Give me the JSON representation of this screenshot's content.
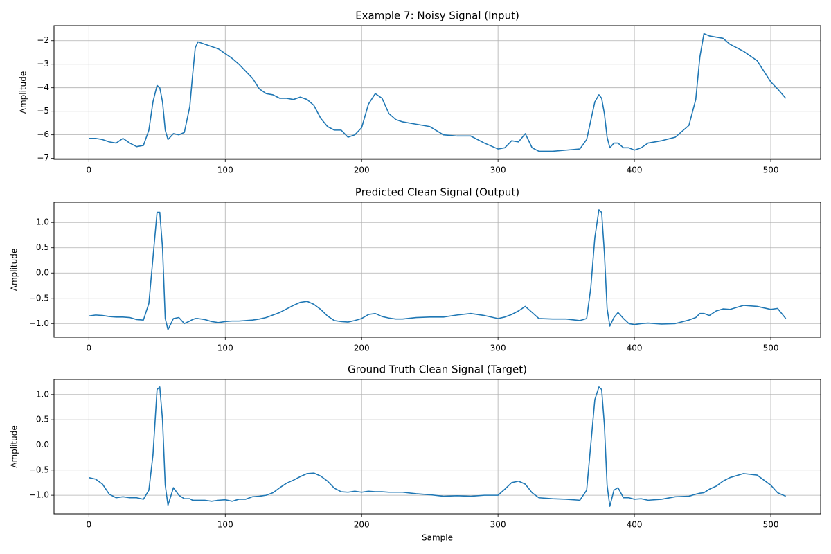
{
  "chart_data": [
    {
      "type": "line",
      "title": "Example 7: Noisy Signal (Input)",
      "y_label": "Amplitude",
      "color": "#1f77b4",
      "grid": true,
      "x": [
        0,
        5,
        10,
        15,
        20,
        25,
        30,
        35,
        40,
        44,
        47,
        50,
        52,
        54,
        56,
        58,
        62,
        66,
        70,
        74,
        76,
        78,
        80,
        85,
        90,
        95,
        100,
        105,
        110,
        115,
        120,
        125,
        130,
        135,
        140,
        145,
        150,
        155,
        160,
        165,
        170,
        175,
        180,
        185,
        190,
        195,
        200,
        205,
        210,
        215,
        220,
        225,
        230,
        240,
        250,
        260,
        270,
        280,
        290,
        300,
        305,
        310,
        315,
        320,
        325,
        330,
        340,
        350,
        360,
        365,
        368,
        371,
        374,
        376,
        378,
        380,
        382,
        385,
        388,
        392,
        396,
        400,
        405,
        410,
        420,
        430,
        440,
        445,
        448,
        451,
        455,
        460,
        465,
        470,
        480,
        490,
        500,
        505,
        511
      ],
      "values": [
        -6.15,
        -6.15,
        -6.2,
        -6.3,
        -6.35,
        -6.15,
        -6.35,
        -6.5,
        -6.45,
        -5.8,
        -4.6,
        -3.9,
        -4.0,
        -4.6,
        -5.8,
        -6.2,
        -5.95,
        -6.0,
        -5.9,
        -4.8,
        -3.5,
        -2.3,
        -2.05,
        -2.15,
        -2.25,
        -2.35,
        -2.55,
        -2.75,
        -3.0,
        -3.3,
        -3.6,
        -4.05,
        -4.25,
        -4.3,
        -4.45,
        -4.45,
        -4.5,
        -4.4,
        -4.5,
        -4.75,
        -5.3,
        -5.65,
        -5.8,
        -5.8,
        -6.1,
        -6.0,
        -5.7,
        -4.7,
        -4.25,
        -4.45,
        -5.1,
        -5.35,
        -5.45,
        -5.55,
        -5.65,
        -6.0,
        -6.05,
        -6.05,
        -6.35,
        -6.6,
        -6.55,
        -6.25,
        -6.3,
        -5.95,
        -6.55,
        -6.7,
        -6.7,
        -6.65,
        -6.6,
        -6.2,
        -5.4,
        -4.6,
        -4.3,
        -4.45,
        -5.1,
        -6.1,
        -6.55,
        -6.35,
        -6.35,
        -6.55,
        -6.55,
        -6.65,
        -6.55,
        -6.35,
        -6.25,
        -6.1,
        -5.6,
        -4.5,
        -2.7,
        -1.7,
        -1.8,
        -1.85,
        -1.9,
        -2.15,
        -2.45,
        -2.85,
        -3.75,
        -4.05,
        -4.45
      ],
      "xlim": [
        -25.55,
        536.55
      ],
      "xticks": [
        0,
        100,
        200,
        300,
        400,
        500
      ],
      "ylim": [
        -7.04,
        -1.36
      ],
      "yticks": [
        {
          "value": -7,
          "label": "−7"
        },
        {
          "value": -6,
          "label": "−6"
        },
        {
          "value": -5,
          "label": "−5"
        },
        {
          "value": -4,
          "label": "−4"
        },
        {
          "value": -3,
          "label": "−3"
        },
        {
          "value": -2,
          "label": "−2"
        }
      ]
    },
    {
      "type": "line",
      "title": "Predicted Clean Signal (Output)",
      "y_label": "Amplitude",
      "color": "#1f77b4",
      "grid": true,
      "x": [
        0,
        5,
        10,
        15,
        20,
        25,
        30,
        35,
        40,
        44,
        47,
        50,
        52,
        54,
        56,
        58,
        62,
        66,
        70,
        74,
        76,
        78,
        80,
        85,
        90,
        95,
        100,
        105,
        110,
        115,
        120,
        125,
        130,
        135,
        140,
        145,
        150,
        155,
        160,
        165,
        170,
        175,
        180,
        185,
        190,
        195,
        200,
        205,
        210,
        215,
        220,
        225,
        230,
        240,
        250,
        260,
        270,
        280,
        290,
        300,
        305,
        310,
        315,
        320,
        325,
        330,
        340,
        350,
        360,
        365,
        368,
        371,
        374,
        376,
        378,
        380,
        382,
        385,
        388,
        392,
        396,
        400,
        405,
        410,
        420,
        430,
        440,
        445,
        448,
        451,
        455,
        460,
        465,
        470,
        480,
        490,
        500,
        505,
        511
      ],
      "values": [
        -0.85,
        -0.83,
        -0.84,
        -0.86,
        -0.87,
        -0.87,
        -0.88,
        -0.92,
        -0.93,
        -0.6,
        0.3,
        1.2,
        1.2,
        0.5,
        -0.9,
        -1.12,
        -0.9,
        -0.88,
        -1.0,
        -0.95,
        -0.92,
        -0.9,
        -0.9,
        -0.92,
        -0.96,
        -0.98,
        -0.96,
        -0.95,
        -0.95,
        -0.94,
        -0.93,
        -0.91,
        -0.88,
        -0.83,
        -0.78,
        -0.71,
        -0.64,
        -0.58,
        -0.56,
        -0.62,
        -0.72,
        -0.85,
        -0.94,
        -0.96,
        -0.97,
        -0.94,
        -0.9,
        -0.82,
        -0.8,
        -0.86,
        -0.89,
        -0.91,
        -0.91,
        -0.88,
        -0.87,
        -0.87,
        -0.83,
        -0.8,
        -0.84,
        -0.9,
        -0.87,
        -0.82,
        -0.75,
        -0.66,
        -0.78,
        -0.9,
        -0.91,
        -0.91,
        -0.94,
        -0.9,
        -0.3,
        0.7,
        1.25,
        1.2,
        0.4,
        -0.7,
        -1.05,
        -0.88,
        -0.78,
        -0.9,
        -1.0,
        -1.02,
        -1.0,
        -0.99,
        -1.01,
        -1.0,
        -0.93,
        -0.88,
        -0.8,
        -0.8,
        -0.84,
        -0.75,
        -0.71,
        -0.72,
        -0.64,
        -0.66,
        -0.72,
        -0.7,
        -0.9
      ],
      "xlim": [
        -25.55,
        536.55
      ],
      "xticks": [
        0,
        100,
        200,
        300,
        400,
        500
      ],
      "ylim": [
        -1.27,
        1.4
      ],
      "yticks": [
        {
          "value": -1,
          "label": "−1.0"
        },
        {
          "value": -0.5,
          "label": "−0.5"
        },
        {
          "value": 0,
          "label": "0.0"
        },
        0.5,
        {
          "value": 1,
          "label": "1.0"
        }
      ]
    },
    {
      "type": "line",
      "title": "Ground Truth Clean Signal (Target)",
      "y_label": "Amplitude",
      "x_label": "Sample",
      "color": "#1f77b4",
      "grid": true,
      "x": [
        0,
        5,
        10,
        15,
        20,
        25,
        30,
        35,
        40,
        44,
        47,
        50,
        52,
        54,
        56,
        58,
        62,
        66,
        70,
        74,
        76,
        78,
        80,
        85,
        90,
        95,
        100,
        105,
        110,
        115,
        120,
        125,
        130,
        135,
        140,
        145,
        150,
        155,
        160,
        165,
        170,
        175,
        180,
        185,
        190,
        195,
        200,
        205,
        210,
        215,
        220,
        225,
        230,
        240,
        250,
        260,
        270,
        280,
        290,
        300,
        305,
        310,
        315,
        320,
        325,
        330,
        340,
        350,
        360,
        365,
        368,
        371,
        374,
        376,
        378,
        380,
        382,
        385,
        388,
        392,
        396,
        400,
        405,
        410,
        420,
        430,
        440,
        445,
        448,
        451,
        455,
        460,
        465,
        470,
        480,
        490,
        500,
        505,
        511
      ],
      "values": [
        -0.65,
        -0.68,
        -0.78,
        -0.98,
        -1.05,
        -1.03,
        -1.05,
        -1.05,
        -1.08,
        -0.9,
        -0.2,
        1.1,
        1.15,
        0.5,
        -0.8,
        -1.2,
        -0.85,
        -1.0,
        -1.07,
        -1.07,
        -1.1,
        -1.1,
        -1.1,
        -1.1,
        -1.12,
        -1.1,
        -1.09,
        -1.12,
        -1.08,
        -1.08,
        -1.03,
        -1.02,
        -1.0,
        -0.95,
        -0.85,
        -0.76,
        -0.7,
        -0.63,
        -0.57,
        -0.56,
        -0.62,
        -0.72,
        -0.86,
        -0.93,
        -0.94,
        -0.92,
        -0.94,
        -0.92,
        -0.93,
        -0.93,
        -0.94,
        -0.94,
        -0.94,
        -0.97,
        -0.99,
        -1.02,
        -1.01,
        -1.02,
        -1.0,
        -1.0,
        -0.88,
        -0.75,
        -0.72,
        -0.78,
        -0.95,
        -1.05,
        -1.07,
        -1.08,
        -1.1,
        -0.9,
        0.0,
        0.9,
        1.15,
        1.1,
        0.4,
        -0.8,
        -1.22,
        -0.9,
        -0.85,
        -1.05,
        -1.05,
        -1.08,
        -1.07,
        -1.1,
        -1.08,
        -1.03,
        -1.02,
        -0.98,
        -0.96,
        -0.95,
        -0.88,
        -0.82,
        -0.72,
        -0.65,
        -0.57,
        -0.6,
        -0.8,
        -0.95,
        -1.02
      ],
      "xlim": [
        -25.55,
        536.55
      ],
      "xticks": [
        0,
        100,
        200,
        300,
        400,
        500
      ],
      "ylim": [
        -1.37,
        1.3
      ],
      "yticks": [
        {
          "value": -1,
          "label": "−1.0"
        },
        {
          "value": -0.5,
          "label": "−0.5"
        },
        {
          "value": 0,
          "label": "0.0"
        },
        0.5,
        {
          "value": 1,
          "label": "1.0"
        }
      ]
    }
  ]
}
